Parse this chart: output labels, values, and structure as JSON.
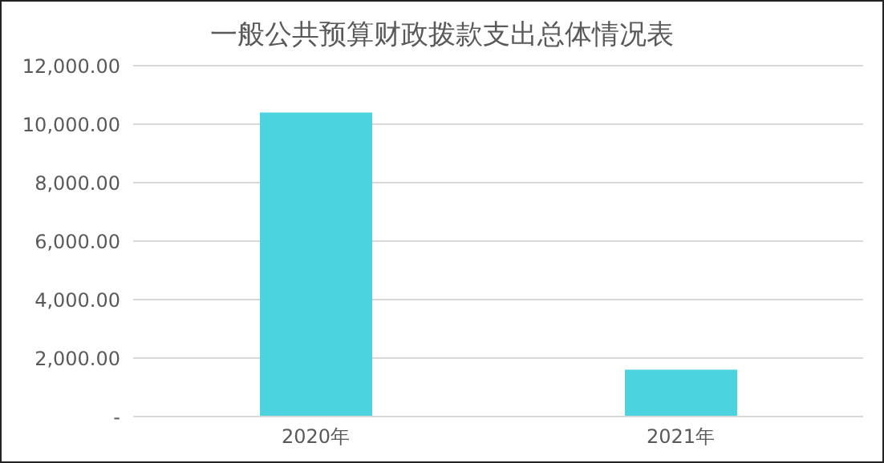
{
  "chart_data": {
    "type": "bar",
    "title": "一般公共预算财政拨款支出总体情况表",
    "categories": [
      "2020年",
      "2021年"
    ],
    "values": [
      10400,
      1600
    ],
    "color": "#4bd3e0",
    "ylim": [
      0,
      12000
    ],
    "yticks": [
      {
        "value": 0,
        "label": "-"
      },
      {
        "value": 2000,
        "label": "2,000.00"
      },
      {
        "value": 4000,
        "label": "4,000.00"
      },
      {
        "value": 6000,
        "label": "6,000.00"
      },
      {
        "value": 8000,
        "label": "8,000.00"
      },
      {
        "value": 10000,
        "label": "10,000.00"
      },
      {
        "value": 12000,
        "label": "12,000.00"
      }
    ],
    "grid": "y"
  }
}
